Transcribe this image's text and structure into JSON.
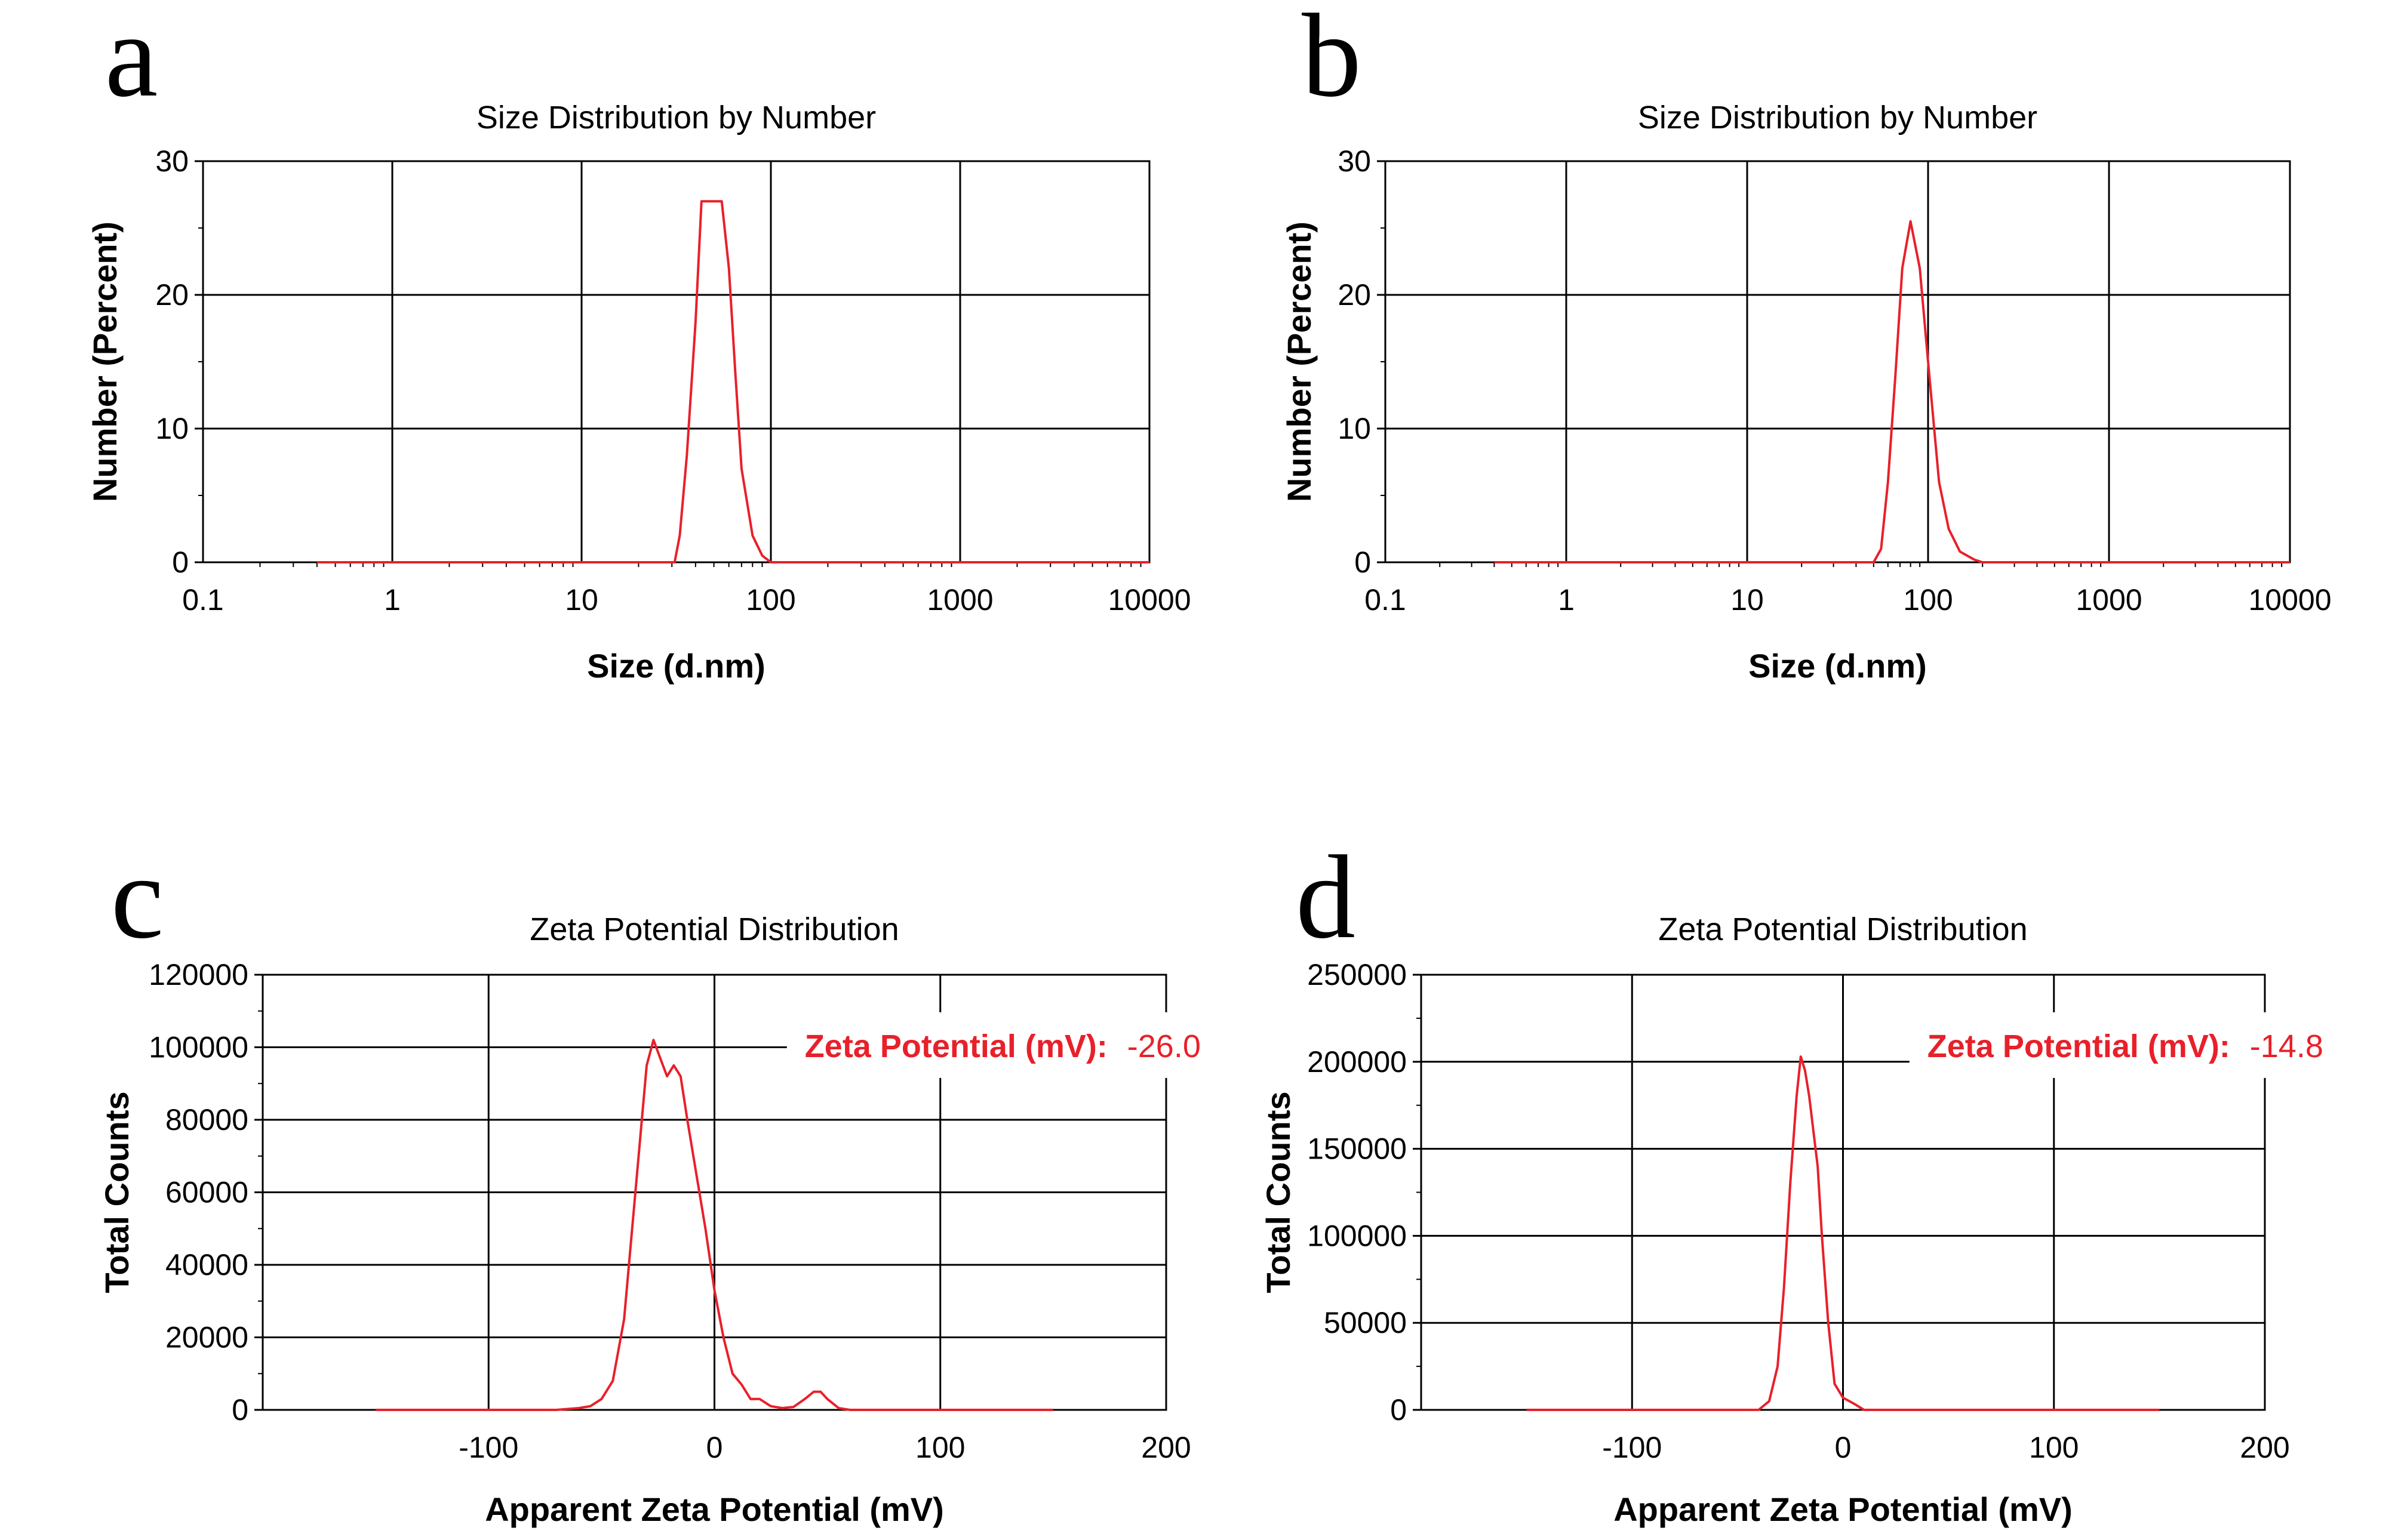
{
  "chart_data": [
    {
      "panel": "a",
      "type": "line",
      "title": "Size Distribution by Number",
      "xlabel": "Size (d.nm)",
      "ylabel": "Number (Percent)",
      "xscale": "log",
      "xlim": [
        0.1,
        10000
      ],
      "ylim": [
        0,
        30
      ],
      "xticks": [
        "0.1",
        "1",
        "10",
        "100",
        "1000",
        "10000"
      ],
      "yticks": [
        "0",
        "10",
        "20",
        "30"
      ],
      "grid": true,
      "color": "#e8202a",
      "series": [
        {
          "x": [
            0.4,
            1,
            10,
            31,
            33,
            36,
            40,
            43,
            47,
            55,
            60,
            65,
            70,
            80,
            90,
            100,
            200,
            1000,
            10000
          ],
          "y": [
            0,
            0,
            0,
            0,
            2,
            8,
            18,
            27,
            27,
            27,
            22,
            14,
            7,
            2,
            0.5,
            0,
            0,
            0,
            0
          ]
        }
      ]
    },
    {
      "panel": "b",
      "type": "line",
      "title": "Size Distribution by Number",
      "xlabel": "Size (d.nm)",
      "ylabel": "Number (Percent)",
      "xscale": "log",
      "xlim": [
        0.1,
        10000
      ],
      "ylim": [
        0,
        30
      ],
      "xticks": [
        "0.1",
        "1",
        "10",
        "100",
        "1000",
        "10000"
      ],
      "yticks": [
        "0",
        "10",
        "20",
        "30"
      ],
      "grid": true,
      "color": "#e8202a",
      "series": [
        {
          "x": [
            0.4,
            1,
            10,
            50,
            55,
            60,
            66,
            72,
            80,
            90,
            100,
            115,
            130,
            150,
            180,
            200,
            1000,
            10000
          ],
          "y": [
            0,
            0,
            0,
            0,
            1,
            6,
            14,
            22,
            25.5,
            22,
            15,
            6,
            2.5,
            0.8,
            0.2,
            0,
            0,
            0
          ]
        }
      ]
    },
    {
      "panel": "c",
      "type": "line",
      "title": "Zeta Potential Distribution",
      "xlabel": "Apparent Zeta Potential (mV)",
      "ylabel": "Total Counts",
      "xlim": [
        -200,
        200
      ],
      "ylim": [
        0,
        120000
      ],
      "xticks": [
        "-100",
        "0",
        "100",
        "200"
      ],
      "yticks": [
        "0",
        "20000",
        "40000",
        "60000",
        "80000",
        "100000",
        "120000"
      ],
      "grid": true,
      "color": "#e8202a",
      "annotation": {
        "label": "Zeta Potential (mV):",
        "value": "-26.0"
      },
      "series": [
        {
          "x": [
            -150,
            -70,
            -60,
            -55,
            -50,
            -45,
            -40,
            -35,
            -30,
            -27,
            -24,
            -21,
            -18,
            -15,
            -12,
            -8,
            -4,
            0,
            4,
            8,
            12,
            16,
            20,
            25,
            30,
            35,
            40,
            44,
            47,
            50,
            55,
            60,
            80,
            150
          ],
          "y": [
            0,
            0,
            500,
            1000,
            3000,
            8000,
            25000,
            60000,
            95000,
            102000,
            97000,
            92000,
            95000,
            92000,
            80000,
            65000,
            50000,
            33000,
            20000,
            10000,
            7000,
            3000,
            3000,
            1000,
            500,
            800,
            3000,
            5000,
            5000,
            3000,
            500,
            0,
            0,
            0
          ]
        }
      ]
    },
    {
      "panel": "d",
      "type": "line",
      "title": "Zeta Potential Distribution",
      "xlabel": "Apparent Zeta Potential (mV)",
      "ylabel": "Total Counts",
      "xlim": [
        -200,
        200
      ],
      "ylim": [
        0,
        250000
      ],
      "xticks": [
        "-100",
        "0",
        "100",
        "200"
      ],
      "yticks": [
        "0",
        "50000",
        "100000",
        "150000",
        "200000",
        "250000"
      ],
      "grid": true,
      "color": "#e8202a",
      "annotation": {
        "label": "Zeta Potential (mV):",
        "value": "-14.8"
      },
      "series": [
        {
          "x": [
            -150,
            -40,
            -35,
            -31,
            -28,
            -25,
            -22,
            -20,
            -18,
            -16,
            -14,
            -12,
            -10,
            -7,
            -4,
            0,
            3,
            6,
            10,
            20,
            150
          ],
          "y": [
            0,
            0,
            5000,
            25000,
            70000,
            130000,
            180000,
            203000,
            195000,
            180000,
            160000,
            140000,
            100000,
            50000,
            15000,
            7000,
            5000,
            3000,
            0,
            0,
            0
          ]
        }
      ]
    }
  ]
}
